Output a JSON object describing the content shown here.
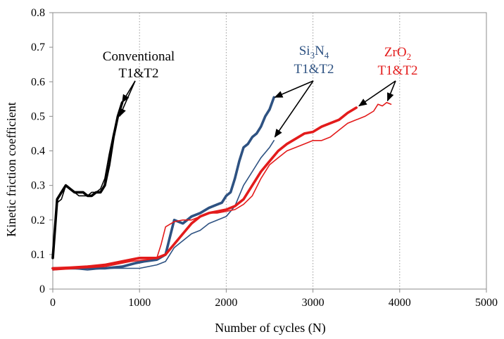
{
  "chart_data": {
    "type": "line",
    "title": "",
    "xlabel": "Number of cycles (N)",
    "ylabel": "Kinetic friction coefficient",
    "xlim": [
      0,
      5000
    ],
    "ylim": [
      0,
      0.8
    ],
    "x_ticks": [
      "0",
      "1000",
      "2000",
      "3000",
      "4000",
      "5000"
    ],
    "y_ticks": [
      "0",
      "0.1",
      "0.2",
      "0.3",
      "0.4",
      "0.5",
      "0.6",
      "0.7",
      "0.8"
    ],
    "grid": "vertical dotted",
    "legend": "none",
    "annotations": [
      {
        "lines": [
          "Conventional",
          "T1&T2"
        ],
        "color": "#000000"
      },
      {
        "lines": [
          "Si3N4",
          "T1&T2"
        ],
        "color": "#2e5282"
      },
      {
        "lines": [
          "ZrO2",
          "T1&T2"
        ],
        "color": "#e31b1b"
      }
    ],
    "series": [
      {
        "group": "Conventional",
        "variant": "thick",
        "color": "#000000",
        "points": [
          [
            0,
            0.09
          ],
          [
            50,
            0.26
          ],
          [
            100,
            0.28
          ],
          [
            150,
            0.3
          ],
          [
            200,
            0.29
          ],
          [
            250,
            0.28
          ],
          [
            300,
            0.28
          ],
          [
            350,
            0.28
          ],
          [
            400,
            0.27
          ],
          [
            450,
            0.27
          ],
          [
            500,
            0.28
          ],
          [
            550,
            0.28
          ],
          [
            600,
            0.3
          ],
          [
            650,
            0.36
          ],
          [
            700,
            0.44
          ],
          [
            750,
            0.5
          ],
          [
            800,
            0.54
          ]
        ]
      },
      {
        "group": "Conventional",
        "variant": "thin",
        "color": "#000000",
        "points": [
          [
            0,
            0.09
          ],
          [
            50,
            0.25
          ],
          [
            100,
            0.26
          ],
          [
            150,
            0.3
          ],
          [
            200,
            0.29
          ],
          [
            250,
            0.28
          ],
          [
            300,
            0.27
          ],
          [
            350,
            0.27
          ],
          [
            400,
            0.27
          ],
          [
            450,
            0.28
          ],
          [
            500,
            0.28
          ],
          [
            550,
            0.29
          ],
          [
            600,
            0.32
          ],
          [
            650,
            0.39
          ],
          [
            700,
            0.45
          ],
          [
            750,
            0.5
          ],
          [
            780,
            0.52
          ]
        ]
      },
      {
        "group": "Si3N4",
        "variant": "thick",
        "color": "#2e5282",
        "points": [
          [
            0,
            0.06
          ],
          [
            200,
            0.06
          ],
          [
            400,
            0.06
          ],
          [
            600,
            0.06
          ],
          [
            800,
            0.065
          ],
          [
            950,
            0.075
          ],
          [
            1050,
            0.08
          ],
          [
            1200,
            0.085
          ],
          [
            1300,
            0.1
          ],
          [
            1350,
            0.15
          ],
          [
            1400,
            0.2
          ],
          [
            1500,
            0.19
          ],
          [
            1600,
            0.21
          ],
          [
            1700,
            0.22
          ],
          [
            1800,
            0.235
          ],
          [
            1900,
            0.245
          ],
          [
            1950,
            0.25
          ],
          [
            2000,
            0.27
          ],
          [
            2050,
            0.28
          ],
          [
            2100,
            0.32
          ],
          [
            2150,
            0.37
          ],
          [
            2200,
            0.41
          ],
          [
            2250,
            0.42
          ],
          [
            2300,
            0.44
          ],
          [
            2350,
            0.45
          ],
          [
            2400,
            0.47
          ],
          [
            2450,
            0.5
          ],
          [
            2500,
            0.52
          ],
          [
            2550,
            0.555
          ]
        ]
      },
      {
        "group": "Si3N4",
        "variant": "thin",
        "color": "#2e5282",
        "points": [
          [
            0,
            0.055
          ],
          [
            200,
            0.06
          ],
          [
            400,
            0.055
          ],
          [
            600,
            0.06
          ],
          [
            800,
            0.06
          ],
          [
            1000,
            0.06
          ],
          [
            1200,
            0.07
          ],
          [
            1300,
            0.08
          ],
          [
            1400,
            0.12
          ],
          [
            1500,
            0.14
          ],
          [
            1600,
            0.16
          ],
          [
            1700,
            0.17
          ],
          [
            1800,
            0.19
          ],
          [
            1900,
            0.2
          ],
          [
            2000,
            0.21
          ],
          [
            2100,
            0.24
          ],
          [
            2200,
            0.3
          ],
          [
            2300,
            0.34
          ],
          [
            2400,
            0.38
          ],
          [
            2500,
            0.41
          ],
          [
            2550,
            0.43
          ]
        ]
      },
      {
        "group": "ZrO2",
        "variant": "thick",
        "color": "#e31b1b",
        "points": [
          [
            0,
            0.06
          ],
          [
            200,
            0.062
          ],
          [
            400,
            0.065
          ],
          [
            600,
            0.07
          ],
          [
            800,
            0.08
          ],
          [
            1000,
            0.09
          ],
          [
            1200,
            0.09
          ],
          [
            1300,
            0.1
          ],
          [
            1400,
            0.13
          ],
          [
            1500,
            0.16
          ],
          [
            1600,
            0.19
          ],
          [
            1700,
            0.21
          ],
          [
            1800,
            0.22
          ],
          [
            1900,
            0.225
          ],
          [
            2000,
            0.23
          ],
          [
            2100,
            0.24
          ],
          [
            2200,
            0.26
          ],
          [
            2300,
            0.3
          ],
          [
            2400,
            0.34
          ],
          [
            2500,
            0.37
          ],
          [
            2600,
            0.4
          ],
          [
            2700,
            0.42
          ],
          [
            2800,
            0.435
          ],
          [
            2900,
            0.45
          ],
          [
            3000,
            0.455
          ],
          [
            3100,
            0.47
          ],
          [
            3200,
            0.48
          ],
          [
            3300,
            0.49
          ],
          [
            3400,
            0.51
          ],
          [
            3500,
            0.525
          ]
        ]
      },
      {
        "group": "ZrO2",
        "variant": "thin",
        "color": "#e31b1b",
        "points": [
          [
            0,
            0.055
          ],
          [
            300,
            0.06
          ],
          [
            600,
            0.065
          ],
          [
            900,
            0.08
          ],
          [
            1100,
            0.085
          ],
          [
            1200,
            0.09
          ],
          [
            1250,
            0.13
          ],
          [
            1300,
            0.18
          ],
          [
            1400,
            0.195
          ],
          [
            1500,
            0.2
          ],
          [
            1600,
            0.2
          ],
          [
            1700,
            0.21
          ],
          [
            1800,
            0.22
          ],
          [
            1900,
            0.22
          ],
          [
            2000,
            0.225
          ],
          [
            2100,
            0.23
          ],
          [
            2200,
            0.245
          ],
          [
            2300,
            0.27
          ],
          [
            2400,
            0.32
          ],
          [
            2500,
            0.36
          ],
          [
            2600,
            0.38
          ],
          [
            2700,
            0.4
          ],
          [
            2800,
            0.41
          ],
          [
            2900,
            0.42
          ],
          [
            3000,
            0.43
          ],
          [
            3100,
            0.43
          ],
          [
            3200,
            0.44
          ],
          [
            3300,
            0.46
          ],
          [
            3400,
            0.48
          ],
          [
            3500,
            0.49
          ],
          [
            3600,
            0.5
          ],
          [
            3700,
            0.515
          ],
          [
            3750,
            0.535
          ],
          [
            3800,
            0.53
          ],
          [
            3850,
            0.54
          ],
          [
            3900,
            0.535
          ]
        ]
      }
    ]
  }
}
